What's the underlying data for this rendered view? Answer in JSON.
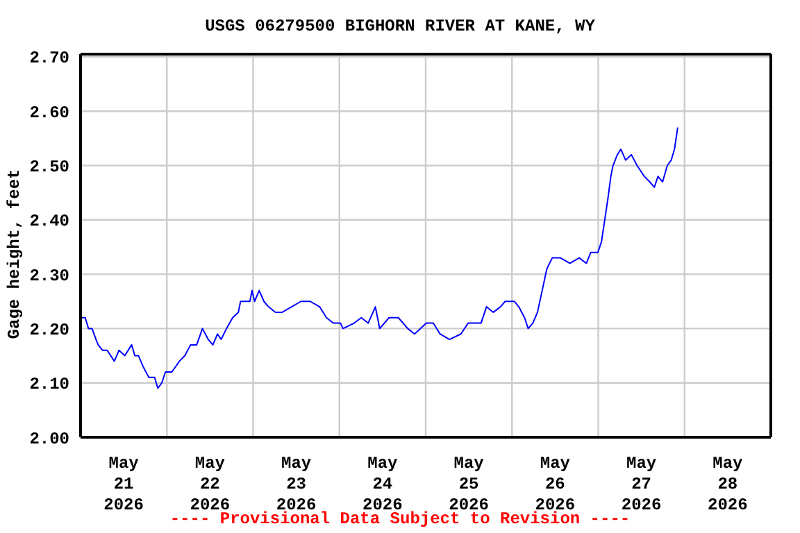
{
  "chart_data": {
    "type": "line",
    "title": "USGS 06279500 BIGHORN RIVER AT KANE, WY",
    "ylabel": "Gage height, feet",
    "annotations": [
      "---- Provisional Data Subject to Revision ----"
    ],
    "x": [
      "2026-05-21T00:00",
      "2026-05-21T01:18",
      "2026-05-21T02:12",
      "2026-05-21T03:12",
      "2026-05-21T04:18",
      "2026-05-21T04:54",
      "2026-05-21T06:06",
      "2026-05-21T07:24",
      "2026-05-21T09:24",
      "2026-05-21T10:42",
      "2026-05-21T12:18",
      "2026-05-21T14:12",
      "2026-05-21T15:06",
      "2026-05-21T16:06",
      "2026-05-21T17:24",
      "2026-05-21T19:00",
      "2026-05-21T20:36",
      "2026-05-21T21:30",
      "2026-05-21T22:36",
      "2026-05-21T23:36",
      "2026-05-22T01:24",
      "2026-05-22T03:30",
      "2026-05-22T05:00",
      "2026-05-22T06:36",
      "2026-05-22T08:18",
      "2026-05-22T09:54",
      "2026-05-22T11:30",
      "2026-05-22T12:48",
      "2026-05-22T14:06",
      "2026-05-22T15:06",
      "2026-05-22T16:36",
      "2026-05-22T18:18",
      "2026-05-22T19:54",
      "2026-05-22T20:30",
      "2026-05-22T23:06",
      "2026-05-22T23:42",
      "2026-05-23T00:24",
      "2026-05-23T01:42",
      "2026-05-23T03:00",
      "2026-05-23T04:18",
      "2026-05-23T06:12",
      "2026-05-23T08:06",
      "2026-05-23T10:42",
      "2026-05-23T13:18",
      "2026-05-23T15:54",
      "2026-05-23T18:30",
      "2026-05-23T20:24",
      "2026-05-23T22:18",
      "2026-05-24T00:18",
      "2026-05-24T01:00",
      "2026-05-24T04:06",
      "2026-05-24T06:06",
      "2026-05-24T08:00",
      "2026-05-24T10:00",
      "2026-05-24T10:36",
      "2026-05-24T11:12",
      "2026-05-24T13:48",
      "2026-05-24T16:24",
      "2026-05-24T19:00",
      "2026-05-24T20:54",
      "2026-05-25T00:12",
      "2026-05-25T02:06",
      "2026-05-25T04:00",
      "2026-05-25T06:36",
      "2026-05-25T09:48",
      "2026-05-25T11:48",
      "2026-05-25T13:00",
      "2026-05-25T15:24",
      "2026-05-25T16:54",
      "2026-05-25T18:48",
      "2026-05-25T20:48",
      "2026-05-25T22:06",
      "2026-05-26T00:42",
      "2026-05-26T01:54",
      "2026-05-26T03:30",
      "2026-05-26T04:30",
      "2026-05-26T05:48",
      "2026-05-26T07:06",
      "2026-05-26T08:24",
      "2026-05-26T09:42",
      "2026-05-26T11:12",
      "2026-05-26T13:30",
      "2026-05-26T16:06",
      "2026-05-26T18:42",
      "2026-05-26T20:42",
      "2026-05-26T21:54",
      "2026-05-26T23:54",
      "2026-05-27T00:54",
      "2026-05-27T01:48",
      "2026-05-27T02:42",
      "2026-05-27T03:30",
      "2026-05-27T04:06",
      "2026-05-27T05:18",
      "2026-05-27T06:18",
      "2026-05-27T07:36",
      "2026-05-27T09:12",
      "2026-05-27T10:48",
      "2026-05-27T12:48",
      "2026-05-27T14:18",
      "2026-05-27T15:36",
      "2026-05-27T16:36",
      "2026-05-27T17:54",
      "2026-05-27T19:12",
      "2026-05-27T20:18",
      "2026-05-27T21:12",
      "2026-05-27T22:06"
    ],
    "series": [
      {
        "color": "#0000ff",
        "values": [
          2.22,
          2.22,
          2.2,
          2.2,
          2.18,
          2.17,
          2.16,
          2.16,
          2.14,
          2.16,
          2.15,
          2.17,
          2.15,
          2.15,
          2.13,
          2.11,
          2.11,
          2.09,
          2.1,
          2.12,
          2.12,
          2.14,
          2.15,
          2.17,
          2.17,
          2.2,
          2.18,
          2.17,
          2.19,
          2.18,
          2.2,
          2.22,
          2.23,
          2.25,
          2.25,
          2.27,
          2.25,
          2.27,
          2.25,
          2.24,
          2.23,
          2.23,
          2.24,
          2.25,
          2.25,
          2.24,
          2.22,
          2.21,
          2.21,
          2.2,
          2.21,
          2.22,
          2.21,
          2.24,
          2.22,
          2.2,
          2.22,
          2.22,
          2.2,
          2.19,
          2.21,
          2.21,
          2.19,
          2.18,
          2.19,
          2.21,
          2.21,
          2.21,
          2.24,
          2.23,
          2.24,
          2.25,
          2.25,
          2.24,
          2.22,
          2.2,
          2.21,
          2.23,
          2.27,
          2.31,
          2.33,
          2.33,
          2.32,
          2.33,
          2.32,
          2.34,
          2.34,
          2.36,
          2.4,
          2.44,
          2.48,
          2.5,
          2.52,
          2.53,
          2.51,
          2.52,
          2.5,
          2.48,
          2.47,
          2.46,
          2.48,
          2.47,
          2.5,
          2.51,
          2.53,
          2.57
        ]
      }
    ],
    "xlim": [
      "2026-05-21T00:00",
      "2026-05-29T00:00"
    ],
    "xticks": [
      {
        "value": "2026-05-21T00:00",
        "label": null
      },
      {
        "value": "2026-05-21T12:00",
        "label": "May 21 2026"
      },
      {
        "value": "2026-05-22T00:00",
        "label": null
      },
      {
        "value": "2026-05-22T12:00",
        "label": "May 22 2026"
      },
      {
        "value": "2026-05-23T00:00",
        "label": null
      },
      {
        "value": "2026-05-23T12:00",
        "label": "May 23 2026"
      },
      {
        "value": "2026-05-24T00:00",
        "label": null
      },
      {
        "value": "2026-05-24T12:00",
        "label": "May 24 2026"
      },
      {
        "value": "2026-05-25T00:00",
        "label": null
      },
      {
        "value": "2026-05-25T12:00",
        "label": "May 25 2026"
      },
      {
        "value": "2026-05-26T00:00",
        "label": null
      },
      {
        "value": "2026-05-26T12:00",
        "label": "May 26 2026"
      },
      {
        "value": "2026-05-27T00:00",
        "label": null
      },
      {
        "value": "2026-05-27T12:00",
        "label": "May 27 2026"
      },
      {
        "value": "2026-05-28T00:00",
        "label": null
      },
      {
        "value": "2026-05-28T12:00",
        "label": "May 28 2026"
      },
      {
        "value": "2026-05-29T00:00",
        "label": null
      }
    ],
    "ylim": [
      2.0,
      2.705
    ],
    "yticks": [
      {
        "value": 2.0,
        "label": "2.00"
      },
      {
        "value": 2.1,
        "label": "2.10"
      },
      {
        "value": 2.2,
        "label": "2.20"
      },
      {
        "value": 2.3,
        "label": "2.30"
      },
      {
        "value": 2.4,
        "label": "2.40"
      },
      {
        "value": 2.5,
        "label": "2.50"
      },
      {
        "value": 2.6,
        "label": "2.60"
      },
      {
        "value": 2.7,
        "label": "2.70"
      }
    ],
    "grid": true,
    "marker": "none",
    "line_style": "solid"
  }
}
